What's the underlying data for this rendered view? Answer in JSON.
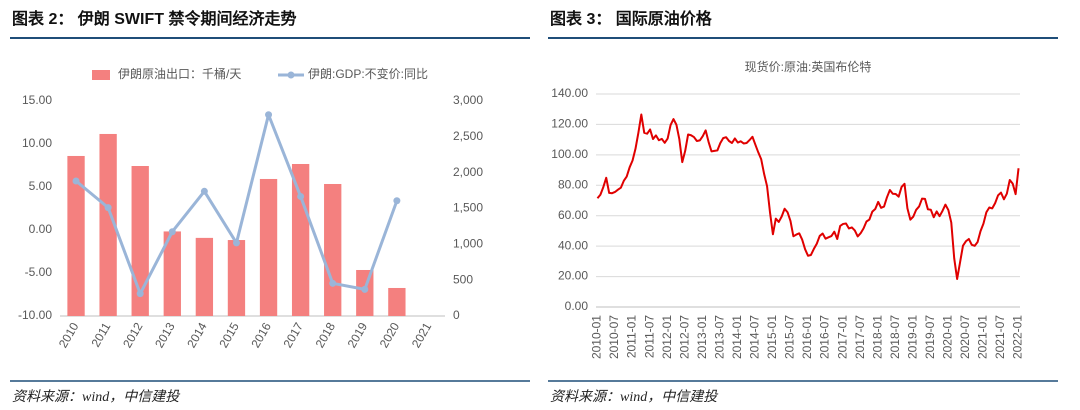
{
  "chart_data": [
    {
      "type": "combo",
      "heading": "图表 2：  伊朗 SWIFT 禁令期间经济走势",
      "source": "资料来源：wind，中信建投",
      "categories": [
        "2010",
        "2011",
        "2012",
        "2013",
        "2014",
        "2015",
        "2016",
        "2017",
        "2018",
        "2019",
        "2020",
        "2021"
      ],
      "series": [
        {
          "name": "伊朗原油出口：千桶/天",
          "type": "bar",
          "axis": "y2",
          "color": "#f4807f",
          "values": [
            2233,
            2540,
            2093,
            1180,
            1090,
            1060,
            1912,
            2121,
            1842,
            642,
            391,
            null
          ]
        },
        {
          "name": "伊朗:GDP:不变价:同比",
          "type": "line",
          "marker": true,
          "color": "#9ab5d8",
          "values": [
            5.7,
            2.6,
            -7.4,
            -0.2,
            4.5,
            -1.5,
            13.4,
            3.9,
            -6.2,
            -6.9,
            3.4,
            null
          ]
        }
      ],
      "ylim": [
        -10,
        15
      ],
      "yticks": [
        {
          "value": 15,
          "label": "15.00"
        },
        {
          "value": 10,
          "label": "10.00"
        },
        {
          "value": 5,
          "label": "5.00"
        },
        {
          "value": 0,
          "label": "0.00"
        },
        {
          "value": -5,
          "label": "-5.00"
        },
        {
          "value": -10,
          "label": "-10.00"
        }
      ],
      "y2lim": [
        0,
        3000
      ],
      "y2ticks": [
        {
          "value": 3000,
          "label": "3,000"
        },
        {
          "value": 2500,
          "label": "2,500"
        },
        {
          "value": 2000,
          "label": "2,000"
        },
        {
          "value": 1500,
          "label": "1,500"
        },
        {
          "value": 1000,
          "label": "1,000"
        },
        500,
        0
      ],
      "grid": false,
      "legend": "top"
    },
    {
      "type": "line",
      "heading": "图表 3：  国际原油价格",
      "source": "资料来源：wind，中信建投",
      "title": "现货价:原油:英国布伦特",
      "categories": [
        "2010-01",
        null,
        null,
        null,
        null,
        null,
        "2010-07",
        null,
        null,
        null,
        null,
        null,
        "2011-01",
        null,
        null,
        null,
        null,
        null,
        "2011-07",
        null,
        null,
        null,
        null,
        null,
        "2012-01",
        null,
        null,
        null,
        null,
        null,
        "2012-07",
        null,
        null,
        null,
        null,
        null,
        "2013-01",
        null,
        null,
        null,
        null,
        null,
        "2013-07",
        null,
        null,
        null,
        null,
        null,
        "2014-01",
        null,
        null,
        null,
        null,
        null,
        "2014-07",
        null,
        null,
        null,
        null,
        null,
        "2015-01",
        null,
        null,
        null,
        null,
        null,
        "2015-07",
        null,
        null,
        null,
        null,
        null,
        "2016-01",
        null,
        null,
        null,
        null,
        null,
        "2016-07",
        null,
        null,
        null,
        null,
        null,
        "2017-01",
        null,
        null,
        null,
        null,
        null,
        "2017-07",
        null,
        null,
        null,
        null,
        null,
        "2018-01",
        null,
        null,
        null,
        null,
        null,
        "2018-07",
        null,
        null,
        null,
        null,
        null,
        "2019-01",
        null,
        null,
        null,
        null,
        null,
        "2019-07",
        null,
        null,
        null,
        null,
        null,
        "2020-01",
        null,
        null,
        null,
        null,
        null,
        "2020-07",
        null,
        null,
        null,
        null,
        null,
        "2021-01",
        null,
        null,
        null,
        null,
        null,
        "2021-07",
        null,
        null,
        null,
        null,
        null,
        "2022-01"
      ],
      "series": [
        {
          "name": "现货价:原油:英国布伦特",
          "type": "line",
          "color": "#e00000",
          "values": [
            71.5,
            73.8,
            78.8,
            84.9,
            75.0,
            74.8,
            75.6,
            77.1,
            78.4,
            82.9,
            85.7,
            91.8,
            96.3,
            104.0,
            114.6,
            126.5,
            114.5,
            113.9,
            116.7,
            110.4,
            112.8,
            109.6,
            110.5,
            107.9,
            110.7,
            119.6,
            123.5,
            119.8,
            110.3,
            95.2,
            102.6,
            113.4,
            112.9,
            111.7,
            109.1,
            109.5,
            112.3,
            116.1,
            108.5,
            102.3,
            102.6,
            102.9,
            107.7,
            111.0,
            111.6,
            109.1,
            107.8,
            110.8,
            108.1,
            108.9,
            107.5,
            107.8,
            109.7,
            111.9,
            106.7,
            101.6,
            97.1,
            87.4,
            79.4,
            62.3,
            47.8,
            58.1,
            55.9,
            59.5,
            64.6,
            62.3,
            56.6,
            46.5,
            47.6,
            48.4,
            44.3,
            38.0,
            33.7,
            34.2,
            38.2,
            41.6,
            46.7,
            48.3,
            44.9,
            45.8,
            46.6,
            49.5,
            44.7,
            53.3,
            54.6,
            54.9,
            51.6,
            52.3,
            50.3,
            46.4,
            48.5,
            51.7,
            56.2,
            57.5,
            62.7,
            64.4,
            69.1,
            65.2,
            66.0,
            72.1,
            76.9,
            74.4,
            74.3,
            72.5,
            78.9,
            81.0,
            64.8,
            57.4,
            59.4,
            63.9,
            66.1,
            71.2,
            71.1,
            64.2,
            63.9,
            59.0,
            62.8,
            59.7,
            63.2,
            67.3,
            63.7,
            55.5,
            32.0,
            18.4,
            29.4,
            40.3,
            43.2,
            44.7,
            40.9,
            40.2,
            42.7,
            49.9,
            54.8,
            62.3,
            65.4,
            64.8,
            68.3,
            73.4,
            75.2,
            70.8,
            74.5,
            83.5,
            81.1,
            74.2,
            91.2
          ]
        }
      ],
      "ylim": [
        0,
        140
      ],
      "yticks": [
        {
          "value": 140,
          "label": "140.00"
        },
        {
          "value": 120,
          "label": "120.00"
        },
        {
          "value": 100,
          "label": "100.00"
        },
        {
          "value": 80,
          "label": "80.00"
        },
        {
          "value": 60,
          "label": "60.00"
        },
        {
          "value": 40,
          "label": "40.00"
        },
        {
          "value": 20,
          "label": "20.00"
        },
        {
          "value": 0,
          "label": "0.00"
        }
      ],
      "grid": true
    }
  ]
}
